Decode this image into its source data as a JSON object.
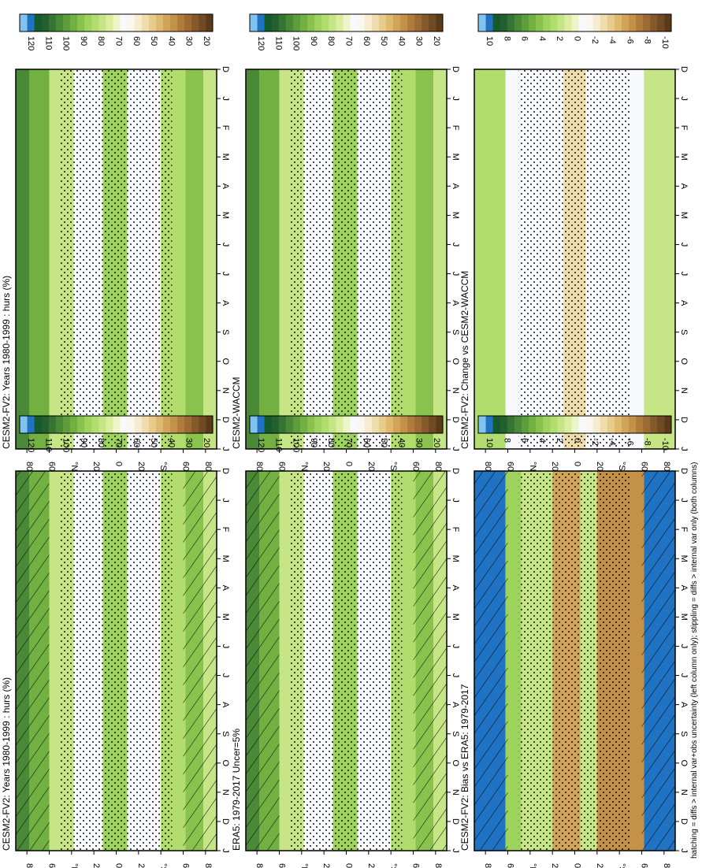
{
  "footnote": "hatching = diffs > internal var+obs uncertainty (left column only); stippling = diffs > internal var only (both columns)",
  "colors": {
    "absolute_levels": [
      "#5b3a1a",
      "#6f4a22",
      "#85592b",
      "#9c6a33",
      "#b07c3d",
      "#c49149",
      "#d2a45a",
      "#deb96f",
      "#e8cc8a",
      "#f0ddad",
      "#f7ecd2",
      "#fbf7ee",
      "#f7f9fd",
      "#eef6c8",
      "#dbeea0",
      "#c6e586",
      "#b1dc6e",
      "#9ed35e",
      "#89c24d",
      "#72b042",
      "#5e9d3b",
      "#4a8a37",
      "#367433",
      "#245f2f",
      "#155a2a",
      "#1f73c2",
      "#7fc3ee"
    ],
    "diff_levels": [
      "#5b3a1a",
      "#6f4a22",
      "#85592b",
      "#9c6a33",
      "#b07c3d",
      "#c49149",
      "#d2a45a",
      "#deb96f",
      "#e8cc8a",
      "#f0ddad",
      "#f7ecd2",
      "#fbf7ee",
      "#f7f9fd",
      "#eef6c8",
      "#dbeea0",
      "#c6e586",
      "#b1dc6e",
      "#9ed35e",
      "#89c24d",
      "#72b042",
      "#5e9d3b",
      "#4a8a37",
      "#367433",
      "#245f2f",
      "#155a2a",
      "#1f73c2",
      "#7fc3ee"
    ]
  },
  "chart_data": [
    {
      "type": "heatmap",
      "title": "CESM2-FV2: Years 1980-1999 : hurs (%)",
      "x": [
        "D",
        "J",
        "F",
        "M",
        "A",
        "M",
        "J",
        "J",
        "A",
        "S",
        "O",
        "N",
        "D",
        "J"
      ],
      "y_ticks": [
        "80",
        "60",
        "°N",
        "20",
        "0",
        "20",
        "°S",
        "60",
        "80"
      ],
      "ylim": [
        -90,
        90
      ],
      "colorbar_labels": [
        "120",
        "110",
        "100",
        "90",
        "80",
        "70",
        "60",
        "50",
        "40",
        "30",
        "20"
      ],
      "hatching": true,
      "stippling": true
    },
    {
      "type": "heatmap",
      "title": "CESM2-FV2: Years 1980-1999 : hurs (%)",
      "x": [
        "D",
        "J",
        "F",
        "M",
        "A",
        "M",
        "J",
        "J",
        "A",
        "S",
        "O",
        "N",
        "D",
        "J"
      ],
      "y_ticks": [
        "80",
        "60",
        "°N",
        "20",
        "0",
        "20",
        "°S",
        "60",
        "80"
      ],
      "ylim": [
        -90,
        90
      ],
      "colorbar_labels": [
        "120",
        "110",
        "100",
        "90",
        "80",
        "70",
        "60",
        "50",
        "40",
        "30",
        "20"
      ],
      "hatching": false,
      "stippling": true
    },
    {
      "type": "heatmap",
      "title": "ERA5: 1979-2017 Uncer=5%",
      "x": [
        "D",
        "J",
        "F",
        "M",
        "A",
        "M",
        "J",
        "J",
        "A",
        "S",
        "O",
        "N",
        "D",
        "J"
      ],
      "y_ticks": [
        "80",
        "60",
        "°N",
        "20",
        "0",
        "20",
        "°S",
        "60",
        "80"
      ],
      "ylim": [
        -90,
        90
      ],
      "colorbar_labels": [
        "120",
        "110",
        "100",
        "90",
        "80",
        "70",
        "60",
        "50",
        "40",
        "30",
        "20"
      ],
      "hatching": true,
      "stippling": true
    },
    {
      "type": "heatmap",
      "title": "CESM2-WACCM",
      "x": [
        "D",
        "J",
        "F",
        "M",
        "A",
        "M",
        "J",
        "J",
        "A",
        "S",
        "O",
        "N",
        "D",
        "J"
      ],
      "y_ticks": [
        "80",
        "60",
        "°N",
        "20",
        "0",
        "20",
        "°S",
        "60",
        "80"
      ],
      "ylim": [
        -90,
        90
      ],
      "colorbar_labels": [
        "120",
        "110",
        "100",
        "90",
        "80",
        "70",
        "60",
        "50",
        "40",
        "30",
        "20"
      ],
      "hatching": false,
      "stippling": true
    },
    {
      "type": "heatmap",
      "title": "CESM2-FV2: Bias vs ERA5: 1979-2017",
      "x": [
        "D",
        "J",
        "F",
        "M",
        "A",
        "M",
        "J",
        "J",
        "A",
        "S",
        "O",
        "N",
        "D",
        "J"
      ],
      "y_ticks": [
        "80",
        "60",
        "°N",
        "20",
        "0",
        "20",
        "°S",
        "60",
        "80"
      ],
      "ylim": [
        -90,
        90
      ],
      "colorbar_labels": [
        "10",
        "8",
        "6",
        "4",
        "2",
        "0",
        "-2",
        "-4",
        "-6",
        "-8",
        "-10"
      ],
      "hatching": true,
      "stippling": true
    },
    {
      "type": "heatmap",
      "title": "CESM2-FV2: Change vs CESM2-WACCM",
      "x": [
        "D",
        "J",
        "F",
        "M",
        "A",
        "M",
        "J",
        "J",
        "A",
        "S",
        "O",
        "N",
        "D",
        "J"
      ],
      "y_ticks": [
        "80",
        "60",
        "°N",
        "20",
        "0",
        "20",
        "°S",
        "60",
        "80"
      ],
      "ylim": [
        -90,
        90
      ],
      "colorbar_labels": [
        "10",
        "8",
        "6",
        "4",
        "2",
        "0",
        "-2",
        "-4",
        "-6",
        "-8",
        "-10"
      ],
      "hatching": false,
      "stippling": true
    }
  ]
}
